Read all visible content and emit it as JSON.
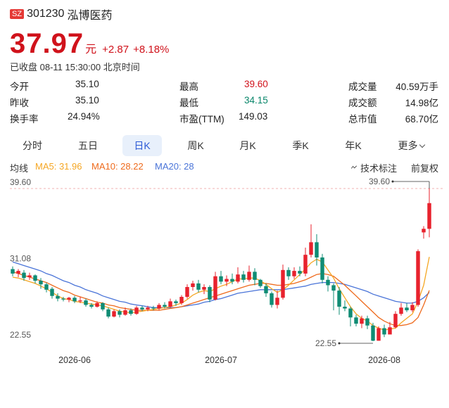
{
  "stock": {
    "market_badge": "SZ",
    "code": "301230",
    "name": "泓博医药",
    "price": "37.97",
    "unit": "元",
    "change": "+2.87",
    "change_pct": "+8.18%",
    "status": "已收盘 08-11 15:30:00 北京时间"
  },
  "stats": [
    [
      {
        "label": "今开",
        "value": "35.10",
        "tone": "neutral"
      },
      {
        "label": "最高",
        "value": "39.60",
        "tone": "up"
      },
      {
        "label": "成交量",
        "value": "40.59万手",
        "tone": "neutral"
      }
    ],
    [
      {
        "label": "昨收",
        "value": "35.10",
        "tone": "neutral"
      },
      {
        "label": "最低",
        "value": "34.15",
        "tone": "down"
      },
      {
        "label": "成交额",
        "value": "14.98亿",
        "tone": "neutral"
      }
    ],
    [
      {
        "label": "换手率",
        "value": "24.94%",
        "tone": "neutral"
      },
      {
        "label": "市盈(TTM)",
        "value": "149.03",
        "tone": "neutral"
      },
      {
        "label": "总市值",
        "value": "68.70亿",
        "tone": "neutral"
      }
    ]
  ],
  "periods": [
    "分时",
    "五日",
    "日K",
    "周K",
    "月K",
    "季K",
    "年K",
    "更多"
  ],
  "active_period": "日K",
  "ma": {
    "label": "均线",
    "ma5": "MA5: 31.96",
    "ma10": "MA10: 28.22",
    "ma20": "MA20: 28",
    "tools": "技术标注",
    "adjust": "前复权"
  },
  "colors": {
    "up": "#e8222d",
    "down": "#0f8c74",
    "ma5": "#f5a623",
    "ma10": "#ee6a1c",
    "ma20": "#4a74d8",
    "active_tab_bg": "#e8f0fb",
    "active_tab_text": "#2c5ad6"
  },
  "chart_data": {
    "type": "candlestick",
    "y_ticks": [
      "39.60",
      "31.08",
      "22.55"
    ],
    "ylim": [
      22.55,
      39.6
    ],
    "x_labels": [
      {
        "label": "2026-06",
        "index": 11
      },
      {
        "label": "2026-07",
        "index": 37
      },
      {
        "label": "2026-08",
        "index": 66
      }
    ],
    "max_marker": {
      "label": "39.60",
      "index": 74
    },
    "min_marker": {
      "label": "22.55",
      "index": 64
    },
    "candles": [
      [
        30.6,
        30.1,
        30.9,
        29.8
      ],
      [
        30.1,
        30.4,
        30.6,
        29.7
      ],
      [
        30.2,
        29.6,
        30.5,
        29.3
      ],
      [
        29.7,
        29.9,
        30.2,
        29.4
      ],
      [
        29.9,
        29.3,
        30.0,
        29.0
      ],
      [
        29.3,
        28.9,
        29.6,
        28.4
      ],
      [
        28.9,
        28.3,
        29.1,
        28.0
      ],
      [
        28.4,
        27.6,
        28.6,
        27.3
      ],
      [
        27.6,
        27.3,
        27.9,
        27.0
      ],
      [
        27.3,
        27.2,
        27.5,
        27.0
      ],
      [
        27.2,
        27.4,
        27.5,
        26.9
      ],
      [
        27.4,
        27.0,
        27.6,
        26.8
      ],
      [
        27.0,
        27.1,
        27.5,
        26.8
      ],
      [
        27.1,
        26.6,
        27.3,
        26.4
      ],
      [
        26.6,
        26.4,
        26.8,
        26.2
      ],
      [
        26.4,
        26.8,
        27.0,
        26.3
      ],
      [
        26.8,
        26.1,
        26.9,
        25.9
      ],
      [
        26.1,
        25.3,
        26.3,
        25.1
      ],
      [
        25.3,
        25.9,
        26.1,
        25.2
      ],
      [
        25.9,
        25.5,
        26.1,
        25.2
      ],
      [
        25.5,
        26.0,
        26.3,
        25.4
      ],
      [
        26.0,
        25.6,
        26.2,
        25.4
      ],
      [
        25.6,
        26.3,
        26.5,
        25.5
      ],
      [
        26.3,
        26.1,
        26.5,
        25.9
      ],
      [
        26.1,
        26.3,
        26.5,
        25.9
      ],
      [
        26.3,
        26.2,
        26.5,
        26.0
      ],
      [
        26.2,
        26.6,
        26.8,
        26.0
      ],
      [
        26.6,
        26.4,
        26.9,
        26.2
      ],
      [
        26.4,
        27.0,
        27.3,
        26.3
      ],
      [
        27.0,
        26.8,
        27.2,
        26.5
      ],
      [
        26.8,
        27.5,
        27.7,
        26.6
      ],
      [
        27.5,
        28.6,
        28.9,
        27.3
      ],
      [
        28.6,
        29.0,
        29.3,
        28.2
      ],
      [
        29.0,
        28.3,
        29.4,
        28.0
      ],
      [
        28.3,
        28.6,
        28.9,
        27.8
      ],
      [
        28.6,
        27.2,
        28.8,
        26.9
      ],
      [
        27.2,
        29.8,
        30.3,
        27.1
      ],
      [
        29.8,
        29.2,
        30.4,
        28.9
      ],
      [
        29.2,
        29.5,
        29.9,
        28.7
      ],
      [
        29.5,
        29.2,
        30.1,
        28.9
      ],
      [
        29.2,
        30.0,
        30.8,
        29.0
      ],
      [
        30.0,
        29.4,
        30.4,
        29.1
      ],
      [
        29.4,
        30.3,
        31.0,
        29.2
      ],
      [
        30.3,
        29.4,
        30.7,
        28.8
      ],
      [
        29.4,
        28.7,
        29.5,
        28.5
      ],
      [
        28.7,
        27.9,
        29.0,
        27.5
      ],
      [
        27.9,
        26.6,
        28.1,
        26.3
      ],
      [
        26.6,
        27.4,
        28.2,
        26.2
      ],
      [
        27.4,
        30.5,
        31.1,
        27.2
      ],
      [
        30.5,
        29.8,
        30.8,
        29.4
      ],
      [
        29.8,
        30.4,
        30.8,
        29.5
      ],
      [
        30.4,
        30.1,
        30.9,
        29.8
      ],
      [
        30.1,
        32.2,
        33.0,
        29.8
      ],
      [
        32.2,
        33.6,
        35.6,
        31.9
      ],
      [
        33.6,
        31.9,
        34.5,
        31.0
      ],
      [
        31.9,
        29.4,
        32.3,
        29.0
      ],
      [
        29.4,
        28.8,
        29.8,
        28.1
      ],
      [
        28.8,
        28.2,
        29.0,
        26.0
      ],
      [
        28.2,
        26.4,
        28.6,
        25.5
      ],
      [
        26.4,
        26.2,
        27.1,
        25.9
      ],
      [
        26.2,
        25.2,
        26.4,
        24.2
      ],
      [
        25.2,
        24.5,
        25.5,
        24.2
      ],
      [
        24.5,
        25.1,
        25.4,
        24.0
      ],
      [
        25.1,
        24.3,
        25.4,
        23.9
      ],
      [
        24.3,
        22.6,
        24.6,
        22.55
      ],
      [
        22.6,
        24.0,
        24.2,
        22.6
      ],
      [
        24.0,
        23.3,
        24.4,
        23.0
      ],
      [
        23.3,
        24.1,
        24.7,
        23.4
      ],
      [
        24.1,
        25.6,
        25.9,
        24.0
      ],
      [
        25.6,
        26.3,
        26.8,
        25.4
      ],
      [
        26.3,
        26.0,
        26.8,
        25.8
      ],
      [
        26.0,
        26.6,
        26.9,
        25.8
      ],
      [
        26.6,
        32.6,
        32.8,
        26.4
      ],
      [
        34.7,
        35.1,
        35.4,
        34.0
      ],
      [
        35.1,
        37.97,
        39.6,
        34.15
      ]
    ],
    "ma5": [
      29.7,
      29.6,
      29.4,
      29.2,
      29.0,
      28.7,
      28.4,
      28.0,
      27.6,
      27.3,
      27.2,
      27.0,
      26.9,
      26.8,
      26.7,
      26.6,
      26.5,
      26.3,
      26.1,
      25.9,
      25.8,
      25.7,
      25.8,
      25.9,
      26.0,
      26.1,
      26.2,
      26.3,
      26.4,
      26.6,
      26.8,
      27.2,
      27.7,
      28.0,
      28.2,
      28.1,
      28.4,
      28.7,
      28.9,
      29.2,
      29.5,
      29.5,
      29.6,
      29.6,
      29.3,
      28.9,
      28.4,
      28.0,
      28.3,
      28.8,
      29.4,
      30.0,
      30.6,
      31.3,
      31.7,
      31.4,
      30.5,
      29.6,
      28.4,
      27.4,
      26.4,
      25.6,
      25.1,
      24.8,
      24.3,
      24.0,
      23.8,
      23.9,
      24.0,
      24.6,
      25.1,
      25.6,
      27.0,
      28.8,
      31.96
    ],
    "ma10": [
      30.3,
      30.1,
      29.9,
      29.7,
      29.5,
      29.3,
      29.1,
      28.8,
      28.5,
      28.2,
      28.0,
      27.7,
      27.5,
      27.3,
      27.1,
      26.9,
      26.8,
      26.6,
      26.5,
      26.3,
      26.2,
      26.1,
      26.0,
      26.0,
      26.0,
      26.0,
      26.0,
      26.1,
      26.2,
      26.3,
      26.4,
      26.6,
      26.8,
      27.0,
      27.2,
      27.4,
      27.6,
      27.8,
      28.0,
      28.2,
      28.4,
      28.6,
      28.8,
      28.9,
      29.0,
      29.0,
      28.9,
      28.8,
      28.8,
      28.9,
      29.0,
      29.2,
      29.4,
      29.7,
      30.0,
      30.1,
      30.0,
      29.8,
      29.3,
      28.8,
      28.2,
      27.6,
      27.0,
      26.4,
      25.8,
      25.2,
      24.8,
      24.5,
      24.3,
      24.3,
      24.4,
      24.6,
      25.2,
      26.6,
      28.22
    ],
    "ma20": [
      31.4,
      31.2,
      31.0,
      30.8,
      30.6,
      30.4,
      30.1,
      29.9,
      29.6,
      29.3,
      29.1,
      28.8,
      28.6,
      28.3,
      28.1,
      27.9,
      27.6,
      27.4,
      27.2,
      27.0,
      26.9,
      26.7,
      26.6,
      26.5,
      26.4,
      26.3,
      26.3,
      26.3,
      26.3,
      26.3,
      26.4,
      26.5,
      26.6,
      26.7,
      26.9,
      27.0,
      27.2,
      27.3,
      27.5,
      27.7,
      27.9,
      28.0,
      28.1,
      28.2,
      28.3,
      28.3,
      28.3,
      28.3,
      28.3,
      28.4,
      28.5,
      28.6,
      28.7,
      28.9,
      29.0,
      29.1,
      29.1,
      29.1,
      29.0,
      28.9,
      28.7,
      28.5,
      28.3,
      28.1,
      27.8,
      27.6,
      27.4,
      27.2,
      27.0,
      26.9,
      26.8,
      26.8,
      27.0,
      27.4,
      28.0
    ]
  }
}
